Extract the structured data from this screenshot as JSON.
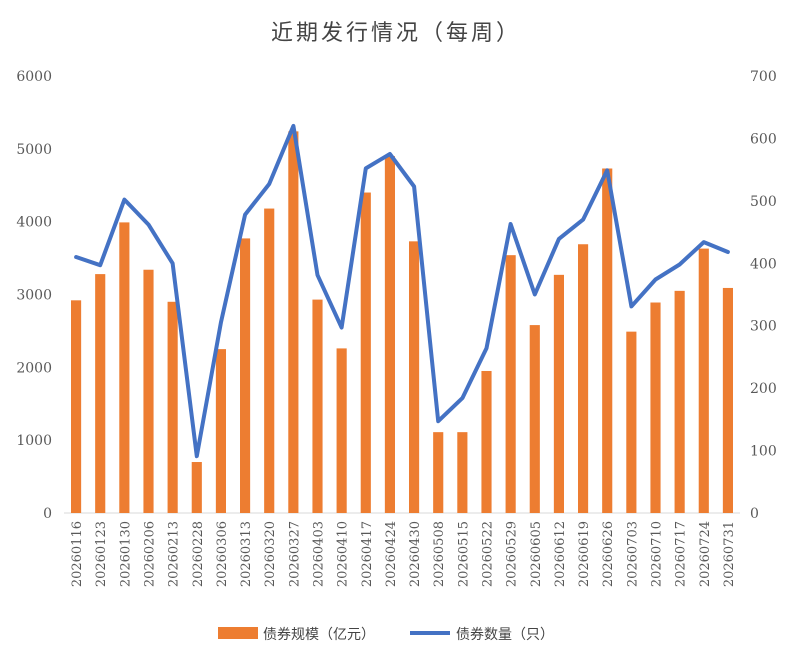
{
  "chart_data": {
    "type": "bar",
    "title": "近期发行情况（每周）",
    "categories": [
      "20260116",
      "20260123",
      "20260130",
      "20260206",
      "20260213",
      "20260228",
      "20260306",
      "20260313",
      "20260320",
      "20260327",
      "20260403",
      "20260410",
      "20260417",
      "20260424",
      "20260430",
      "20260508",
      "20260515",
      "20260522",
      "20260529",
      "20260605",
      "20260612",
      "20260619",
      "20260626",
      "20260703",
      "20260710",
      "20260717",
      "20260724",
      "20260731"
    ],
    "series": [
      {
        "name": "债券规模（亿元）",
        "kind": "bar",
        "axis": "left",
        "color": "#ED7D31",
        "values": [
          2920,
          3280,
          3990,
          3340,
          2900,
          700,
          2250,
          3770,
          4180,
          5240,
          2930,
          2260,
          4400,
          4900,
          3730,
          1110,
          1110,
          1950,
          3540,
          2580,
          3270,
          3690,
          4730,
          2490,
          2890,
          3050,
          3630,
          3090
        ]
      },
      {
        "name": "债券数量（只）",
        "kind": "line",
        "axis": "right",
        "color": "#4472C4",
        "values": [
          410,
          397,
          502,
          462,
          400,
          91,
          305,
          478,
          527,
          620,
          381,
          297,
          552,
          575,
          523,
          147,
          184,
          264,
          463,
          350,
          439,
          470,
          549,
          331,
          374,
          398,
          434,
          418
        ]
      }
    ],
    "y_left": {
      "min": 0,
      "max": 6000,
      "ticks": [
        "0",
        "1000",
        "2000",
        "3000",
        "4000",
        "5000",
        "6000"
      ]
    },
    "y_right": {
      "min": 0,
      "max": 700,
      "ticks": [
        "0",
        "100",
        "200",
        "300",
        "400",
        "500",
        "600",
        "700"
      ]
    },
    "grid": false,
    "legend": "bottom"
  }
}
